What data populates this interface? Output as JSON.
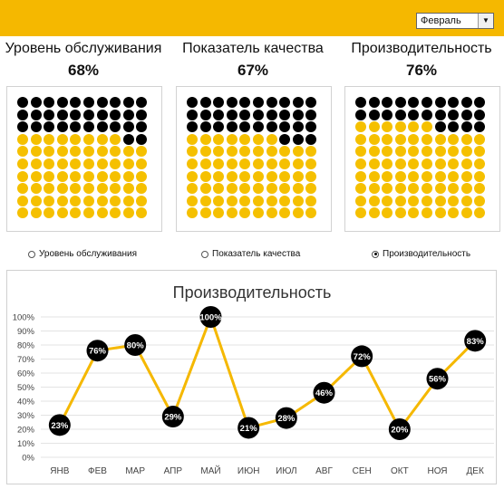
{
  "month_select": {
    "value": "Февраль",
    "icon": "chevron-down-icon"
  },
  "kpis": [
    {
      "title": "Уровень обслуживания",
      "value": "68%",
      "filled": 68
    },
    {
      "title": "Показатель качества",
      "value": "67%",
      "filled": 67
    },
    {
      "title": "Производительность",
      "value": "76%",
      "filled": 76
    }
  ],
  "radios": [
    {
      "label": "Уровень обслуживания",
      "checked": false
    },
    {
      "label": "Показатель качества",
      "checked": false
    },
    {
      "label": "Производительность",
      "checked": true
    }
  ],
  "colors": {
    "accent": "#f5b800",
    "dot_yellow": "#f5c000",
    "dot_black": "#000000",
    "line": "#f5b800"
  },
  "chart_data": {
    "type": "line",
    "title": "Производительность",
    "categories": [
      "ЯНВ",
      "ФЕВ",
      "МАР",
      "АПР",
      "МАЙ",
      "ИЮН",
      "ИЮЛ",
      "АВГ",
      "СЕН",
      "ОКТ",
      "НОЯ",
      "ДЕК"
    ],
    "values": [
      23,
      76,
      80,
      29,
      100,
      21,
      28,
      46,
      72,
      20,
      56,
      83
    ],
    "value_labels": [
      "23%",
      "76%",
      "80%",
      "29%",
      "100%",
      "21%",
      "28%",
      "46%",
      "72%",
      "20%",
      "56%",
      "83%"
    ],
    "y_ticks": [
      "0%",
      "10%",
      "20%",
      "30%",
      "40%",
      "50%",
      "60%",
      "70%",
      "80%",
      "90%",
      "100%"
    ],
    "ylim": [
      0,
      100
    ],
    "grid": true
  }
}
